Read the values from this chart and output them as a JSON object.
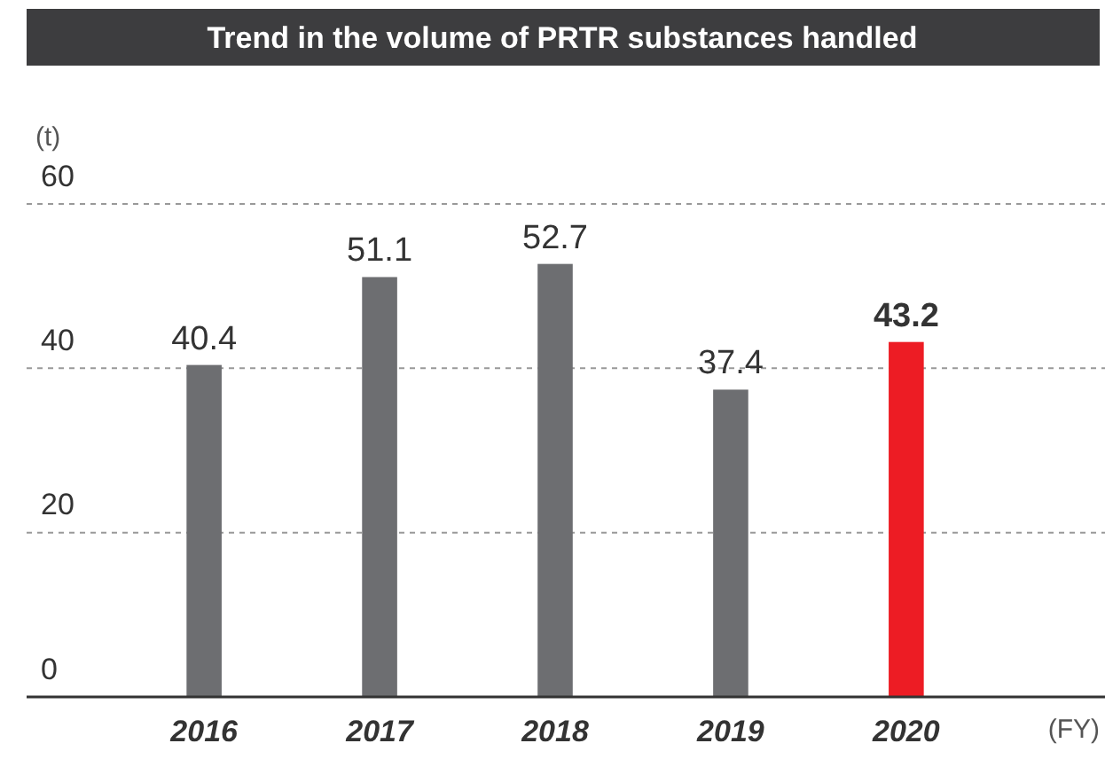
{
  "chart_data": {
    "type": "bar",
    "title": "Trend in the volume of PRTR substances handled",
    "xlabel": "(FY)",
    "ylabel": "(t)",
    "categories": [
      "2016",
      "2017",
      "2018",
      "2019",
      "2020"
    ],
    "values": [
      40.4,
      51.1,
      52.7,
      37.4,
      43.2
    ],
    "colors": [
      "#6d6e71",
      "#6d6e71",
      "#6d6e71",
      "#6d6e71",
      "#ed1c24"
    ],
    "ylim": [
      0,
      60
    ],
    "yticks": [
      0,
      20,
      40,
      60
    ],
    "grid": "y",
    "data_labels": true
  }
}
